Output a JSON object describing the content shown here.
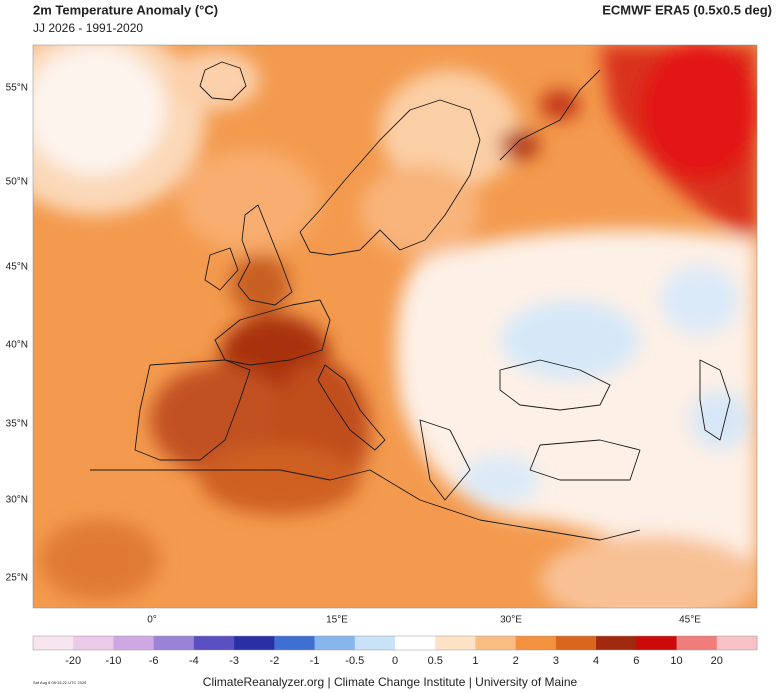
{
  "header": {
    "title": "2m Temperature Anomaly (°C)",
    "subtitle": "JJ 2026 - 1991-2020",
    "source": "ECMWF ERA5 (0.5x0.5 deg)"
  },
  "map": {
    "lat_labels": [
      "55°N",
      "50°N",
      "45°N",
      "40°N",
      "35°N",
      "30°N",
      "25°N"
    ],
    "lon_labels": [
      "0°",
      "15°E",
      "30°E",
      "45°E"
    ]
  },
  "colorbar": {
    "labels": [
      "-20",
      "-10",
      "-6",
      "-4",
      "-3",
      "-2",
      "-1",
      "-0.5",
      "0",
      "0.5",
      "1",
      "2",
      "3",
      "4",
      "6",
      "10",
      "20"
    ],
    "colors": [
      "#f6e4ef",
      "#e9cbe9",
      "#cda8e3",
      "#9a82d6",
      "#5a4fc0",
      "#2a2fa6",
      "#3f6fd0",
      "#87b6ec",
      "#c9e2f7",
      "#ffffff",
      "#fde2c6",
      "#f9bd84",
      "#f2923f",
      "#d9661c",
      "#a02a10",
      "#cc0a0a",
      "#f07c7c",
      "#f7c2c6"
    ]
  },
  "footer": {
    "credit": "ClimateReanalyzer.org | Climate Change Institute | University of Maine",
    "timestamp": "Sat Aug 8 08:15:22 UTC 2026"
  }
}
